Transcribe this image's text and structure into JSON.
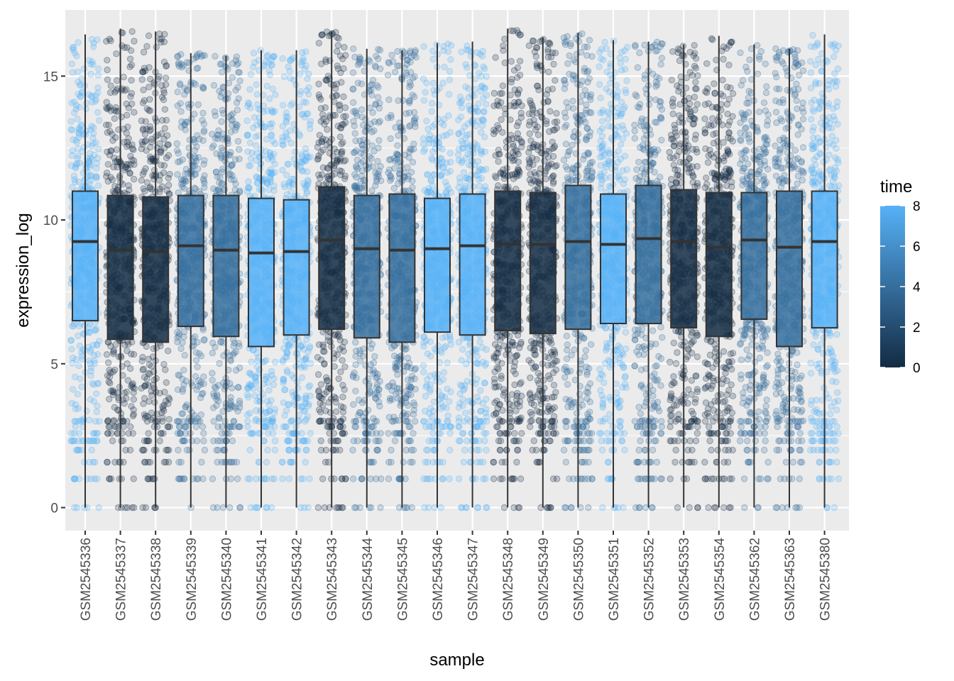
{
  "chart_data": {
    "type": "boxplot",
    "subtype": "box with jittered points",
    "xlabel": "sample",
    "ylabel": "expression_log",
    "ylim": [
      -0.8,
      17.3
    ],
    "yticks": [
      0,
      5,
      10,
      15
    ],
    "grid": true,
    "legend": {
      "title": "time",
      "placement": "right",
      "type": "colorbar",
      "range": [
        0,
        8
      ],
      "ticks": [
        0,
        2,
        4,
        6,
        8
      ],
      "low_color": "#132b43",
      "high_color": "#56b1f7"
    },
    "samples": [
      {
        "name": "GSM2545336",
        "time": 8,
        "min": 0,
        "q1": 6.5,
        "median": 9.25,
        "q3": 11.0,
        "max": 16.45
      },
      {
        "name": "GSM2545337",
        "time": 0,
        "min": 0,
        "q1": 5.85,
        "median": 8.95,
        "q3": 10.85,
        "max": 16.65
      },
      {
        "name": "GSM2545338",
        "time": 0,
        "min": 0,
        "q1": 5.75,
        "median": 8.9,
        "q3": 10.8,
        "max": 16.55
      },
      {
        "name": "GSM2545339",
        "time": 4,
        "min": 0,
        "q1": 6.3,
        "median": 9.1,
        "q3": 10.85,
        "max": 15.8
      },
      {
        "name": "GSM2545340",
        "time": 4,
        "min": 0,
        "q1": 5.95,
        "median": 8.95,
        "q3": 10.85,
        "max": 15.7
      },
      {
        "name": "GSM2545341",
        "time": 8,
        "min": 0,
        "q1": 5.6,
        "median": 8.85,
        "q3": 10.75,
        "max": 15.9
      },
      {
        "name": "GSM2545342",
        "time": 8,
        "min": 0,
        "q1": 6.0,
        "median": 8.9,
        "q3": 10.7,
        "max": 15.9
      },
      {
        "name": "GSM2545343",
        "time": 0,
        "min": 0,
        "q1": 6.2,
        "median": 9.3,
        "q3": 11.15,
        "max": 16.55
      },
      {
        "name": "GSM2545344",
        "time": 4,
        "min": 0,
        "q1": 5.9,
        "median": 9.0,
        "q3": 10.85,
        "max": 15.95
      },
      {
        "name": "GSM2545345",
        "time": 4,
        "min": 0,
        "q1": 5.75,
        "median": 8.95,
        "q3": 10.9,
        "max": 15.9
      },
      {
        "name": "GSM2545346",
        "time": 8,
        "min": 0,
        "q1": 6.1,
        "median": 9.0,
        "q3": 10.75,
        "max": 16.15
      },
      {
        "name": "GSM2545347",
        "time": 8,
        "min": 0,
        "q1": 6.0,
        "median": 9.1,
        "q3": 10.9,
        "max": 16.2
      },
      {
        "name": "GSM2545348",
        "time": 0,
        "min": 0,
        "q1": 6.15,
        "median": 9.15,
        "q3": 11.0,
        "max": 16.65
      },
      {
        "name": "GSM2545349",
        "time": 0,
        "min": 0,
        "q1": 6.05,
        "median": 9.15,
        "q3": 10.95,
        "max": 16.35
      },
      {
        "name": "GSM2545350",
        "time": 4,
        "min": 0,
        "q1": 6.2,
        "median": 9.25,
        "q3": 11.2,
        "max": 16.5
      },
      {
        "name": "GSM2545351",
        "time": 8,
        "min": 0,
        "q1": 6.4,
        "median": 9.15,
        "q3": 10.9,
        "max": 16.25
      },
      {
        "name": "GSM2545352",
        "time": 4,
        "min": 0,
        "q1": 6.4,
        "median": 9.35,
        "q3": 11.2,
        "max": 16.2
      },
      {
        "name": "GSM2545353",
        "time": 0,
        "min": 0,
        "q1": 6.25,
        "median": 9.25,
        "q3": 11.05,
        "max": 16.1
      },
      {
        "name": "GSM2545354",
        "time": 0,
        "min": 0,
        "q1": 5.95,
        "median": 9.05,
        "q3": 10.95,
        "max": 16.4
      },
      {
        "name": "GSM2545362",
        "time": 4,
        "min": 0,
        "q1": 6.55,
        "median": 9.3,
        "q3": 10.95,
        "max": 16.1
      },
      {
        "name": "GSM2545363",
        "time": 4,
        "min": 0,
        "q1": 5.6,
        "median": 9.05,
        "q3": 11.0,
        "max": 15.95
      },
      {
        "name": "GSM2545380",
        "time": 8,
        "min": 0,
        "q1": 6.25,
        "median": 9.25,
        "q3": 11.0,
        "max": 16.45
      }
    ]
  }
}
